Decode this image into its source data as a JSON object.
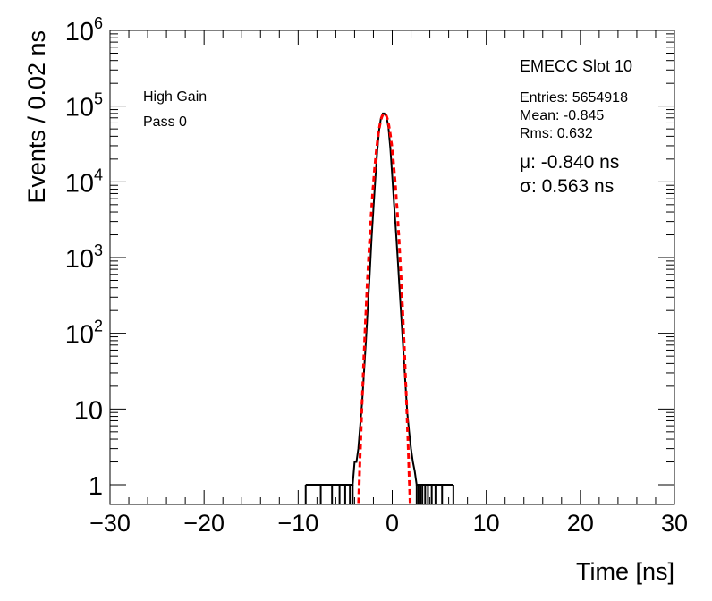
{
  "chart_data": {
    "type": "histogram",
    "title": "",
    "xlabel": "Time [ns]",
    "ylabel": "Events / 0.02 ns",
    "xlim": [
      -30,
      30
    ],
    "ylim": [
      0.55,
      1000000
    ],
    "yscale": "log",
    "x_ticks": [
      -30,
      -20,
      -10,
      0,
      10,
      20,
      30
    ],
    "x_tick_labels": [
      "−30",
      "−20",
      "−10",
      "0",
      "10",
      "20",
      "30"
    ],
    "y_ticks": [
      1,
      10,
      100,
      1000,
      10000,
      100000,
      1000000
    ],
    "y_tick_labels": [
      {
        "base": "1",
        "exp": ""
      },
      {
        "base": "10",
        "exp": ""
      },
      {
        "base": "10",
        "exp": "2"
      },
      {
        "base": "10",
        "exp": "3"
      },
      {
        "base": "10",
        "exp": "4"
      },
      {
        "base": "10",
        "exp": "5"
      },
      {
        "base": "10",
        "exp": "6"
      }
    ],
    "grid": false,
    "annotations": {
      "left_line1": "High Gain",
      "left_line2": "Pass 0",
      "stats_title": "EMECC Slot 10",
      "entries": "Entries: 5654918",
      "mean": "Mean: -0.845",
      "rms": "Rms: 0.632",
      "mu": "μ: -0.840 ns",
      "sigma": "σ: 0.563 ns"
    },
    "series": [
      {
        "kind": "histogram",
        "color": "#000000",
        "x": [
          -9.2,
          -7.6,
          -6.4,
          -5.6,
          -5.0,
          -4.5,
          -4.2,
          -4.0,
          -3.8,
          -3.6,
          -3.4,
          -3.2,
          -3.0,
          -2.8,
          -2.6,
          -2.4,
          -2.2,
          -2.0,
          -1.8,
          -1.6,
          -1.4,
          -1.2,
          -1.0,
          -0.84,
          -0.6,
          -0.4,
          -0.2,
          0.0,
          0.2,
          0.4,
          0.6,
          0.8,
          1.0,
          1.2,
          1.4,
          1.6,
          1.8,
          2.0,
          2.2,
          2.4,
          2.6,
          2.8,
          3.0,
          3.2,
          3.5,
          3.8,
          4.2,
          4.6,
          5.3,
          6.5
        ],
        "y": [
          1,
          1,
          1,
          1,
          1,
          1,
          1,
          2,
          2,
          3,
          6,
          12,
          30,
          80,
          220,
          600,
          1800,
          4500,
          11000,
          25000,
          48000,
          70000,
          80000,
          80000,
          72000,
          52000,
          28000,
          12000,
          5000,
          2200,
          900,
          350,
          140,
          55,
          22,
          9,
          5,
          3,
          2,
          1.5,
          1,
          1,
          1,
          1,
          1,
          1,
          1,
          1,
          1,
          1
        ]
      },
      {
        "kind": "gaussian-fit",
        "color": "#ff0000",
        "line": "dashed",
        "amplitude": 80000,
        "mu": -0.84,
        "sigma": 0.563
      }
    ]
  }
}
